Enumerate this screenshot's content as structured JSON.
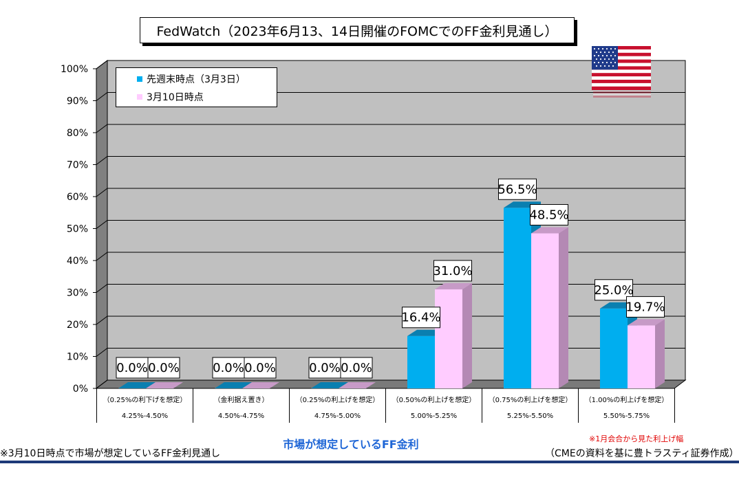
{
  "title": "FedWatch（2023年6月13、14日開催のFOMCでのFF金利見通し）",
  "colors": {
    "series1": "#00aeef",
    "series2": "#ffccff",
    "plot_bg": "#c0c0c0",
    "x_axis_title": "#1f66d6",
    "note": "#e00000"
  },
  "chart_data": {
    "type": "bar",
    "categories": [
      "4.25%-4.50%",
      "4.50%-4.75%",
      "4.75%-5.00%",
      "5.00%-5.25%",
      "5.25%-5.50%",
      "5.50%-5.75%"
    ],
    "category_notes": [
      "（0.25%の利下げを想定）",
      "（金利据え置き）",
      "（0.25%の利上げを想定）",
      "（0.50%の利上げを想定）",
      "（0.75%の利上げを想定）",
      "（1.00%の利上げを想定）"
    ],
    "series": [
      {
        "name": "先週末時点（3月3日）",
        "values": [
          0.0,
          0.0,
          0.0,
          16.4,
          56.5,
          25.0
        ],
        "labels": [
          "0.0%",
          "0.0%",
          "0.0%",
          "16.4%",
          "56.5%",
          "25.0%"
        ]
      },
      {
        "name": "3月10日時点",
        "values": [
          0.0,
          0.0,
          0.0,
          31.0,
          48.5,
          19.7
        ],
        "labels": [
          "0.0%",
          "0.0%",
          "0.0%",
          "31.0%",
          "48.5%",
          "19.7%"
        ]
      }
    ],
    "yticks": [
      "0%",
      "10%",
      "20%",
      "30%",
      "40%",
      "50%",
      "60%",
      "70%",
      "80%",
      "90%",
      "100%"
    ],
    "ylim": [
      0,
      100
    ],
    "grid": true,
    "legend_position": "top-left",
    "xlabel": "市場が想定しているFF金利"
  },
  "footer": {
    "left": "※3月10日時点で市場が想定しているFF金利見通し",
    "note": "※1月会合から見た利上げ幅",
    "source": "（CMEの資料を基に豊トラスティ証券作成）"
  },
  "flag_icon": "us-flag-icon"
}
